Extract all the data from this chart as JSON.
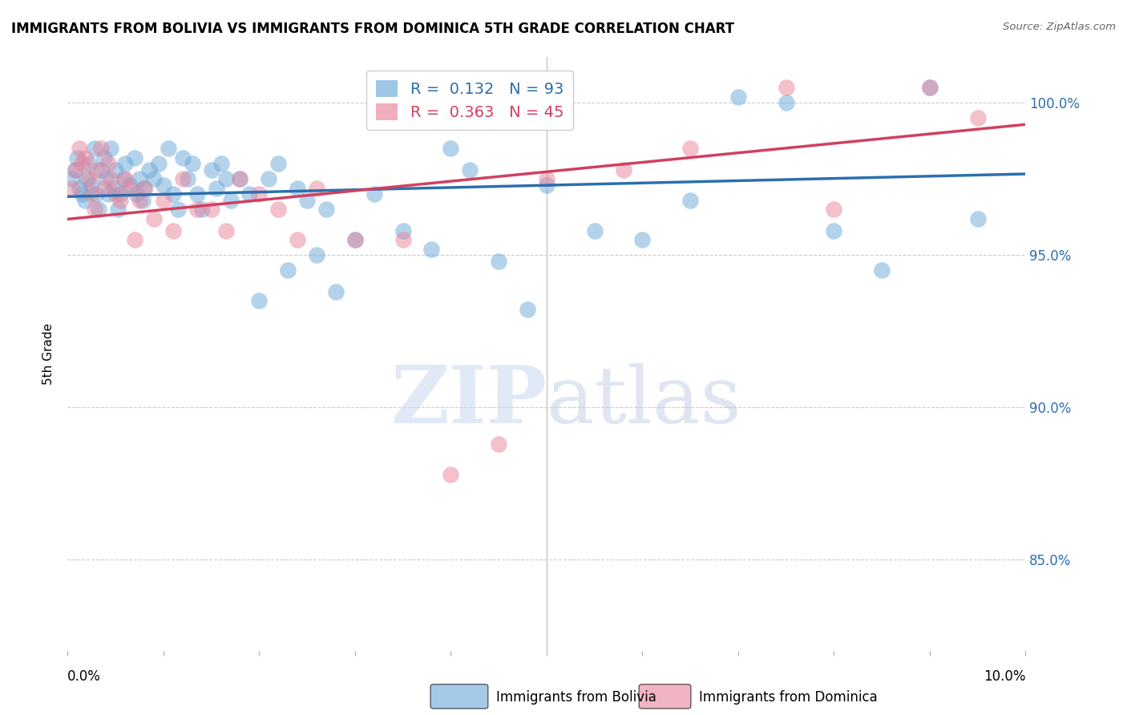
{
  "title": "IMMIGRANTS FROM BOLIVIA VS IMMIGRANTS FROM DOMINICA 5TH GRADE CORRELATION CHART",
  "source": "Source: ZipAtlas.com",
  "ylabel": "5th Grade",
  "xlim": [
    0.0,
    10.0
  ],
  "ylim": [
    82.0,
    101.5
  ],
  "yticks": [
    85.0,
    90.0,
    95.0,
    100.0
  ],
  "ytick_labels": [
    "85.0%",
    "90.0%",
    "95.0%",
    "100.0%"
  ],
  "xticks": [
    0.0,
    1.0,
    2.0,
    3.0,
    4.0,
    5.0,
    6.0,
    7.0,
    8.0,
    9.0,
    10.0
  ],
  "bolivia_color": "#6aa8d8",
  "dominica_color": "#e8829a",
  "bolivia_R": 0.132,
  "bolivia_N": 93,
  "dominica_R": 0.363,
  "dominica_N": 45,
  "trend_bolivia_color": "#2c6fad",
  "trend_dominica_color": "#d04060",
  "watermark_zip": "ZIP",
  "watermark_atlas": "atlas",
  "bolivia_x": [
    0.05,
    0.08,
    0.1,
    0.12,
    0.15,
    0.18,
    0.2,
    0.22,
    0.25,
    0.28,
    0.3,
    0.32,
    0.35,
    0.38,
    0.4,
    0.42,
    0.45,
    0.48,
    0.5,
    0.52,
    0.55,
    0.58,
    0.6,
    0.65,
    0.7,
    0.72,
    0.75,
    0.78,
    0.8,
    0.85,
    0.9,
    0.95,
    1.0,
    1.05,
    1.1,
    1.15,
    1.2,
    1.25,
    1.3,
    1.35,
    1.4,
    1.5,
    1.55,
    1.6,
    1.65,
    1.7,
    1.8,
    1.9,
    2.0,
    2.1,
    2.2,
    2.3,
    2.4,
    2.5,
    2.6,
    2.7,
    2.8,
    3.0,
    3.2,
    3.5,
    3.8,
    4.0,
    4.2,
    4.5,
    4.8,
    5.0,
    5.5,
    6.0,
    6.5,
    7.0,
    7.5,
    8.0,
    8.5,
    9.0,
    9.5
  ],
  "bolivia_y": [
    97.5,
    97.8,
    98.2,
    97.2,
    97.0,
    96.8,
    97.5,
    98.0,
    97.3,
    98.5,
    97.0,
    96.5,
    97.8,
    98.2,
    97.5,
    97.0,
    98.5,
    97.2,
    97.8,
    96.5,
    97.0,
    97.5,
    98.0,
    97.3,
    98.2,
    97.0,
    97.5,
    96.8,
    97.2,
    97.8,
    97.5,
    98.0,
    97.3,
    98.5,
    97.0,
    96.5,
    98.2,
    97.5,
    98.0,
    97.0,
    96.5,
    97.8,
    97.2,
    98.0,
    97.5,
    96.8,
    97.5,
    97.0,
    93.5,
    97.5,
    98.0,
    94.5,
    97.2,
    96.8,
    95.0,
    96.5,
    93.8,
    95.5,
    97.0,
    95.8,
    95.2,
    98.5,
    97.8,
    94.8,
    93.2,
    97.3,
    95.8,
    95.5,
    96.8,
    100.2,
    100.0,
    95.8,
    94.5,
    100.5,
    96.2
  ],
  "dominica_x": [
    0.05,
    0.08,
    0.12,
    0.15,
    0.18,
    0.22,
    0.25,
    0.28,
    0.3,
    0.35,
    0.38,
    0.42,
    0.45,
    0.5,
    0.55,
    0.6,
    0.65,
    0.7,
    0.75,
    0.8,
    0.9,
    1.0,
    1.1,
    1.2,
    1.35,
    1.5,
    1.65,
    1.8,
    2.0,
    2.2,
    2.4,
    2.6,
    3.0,
    3.5,
    4.0,
    4.5,
    5.0,
    5.8,
    6.5,
    7.5,
    8.0,
    9.0,
    9.5
  ],
  "dominica_y": [
    97.2,
    97.8,
    98.5,
    98.0,
    98.2,
    97.5,
    97.0,
    96.5,
    97.8,
    98.5,
    97.2,
    98.0,
    97.5,
    97.0,
    96.8,
    97.5,
    97.2,
    95.5,
    96.8,
    97.2,
    96.2,
    96.8,
    95.8,
    97.5,
    96.5,
    96.5,
    95.8,
    97.5,
    97.0,
    96.5,
    95.5,
    97.2,
    95.5,
    95.5,
    87.8,
    88.8,
    97.5,
    97.8,
    98.5,
    100.5,
    96.5,
    100.5,
    99.5
  ]
}
